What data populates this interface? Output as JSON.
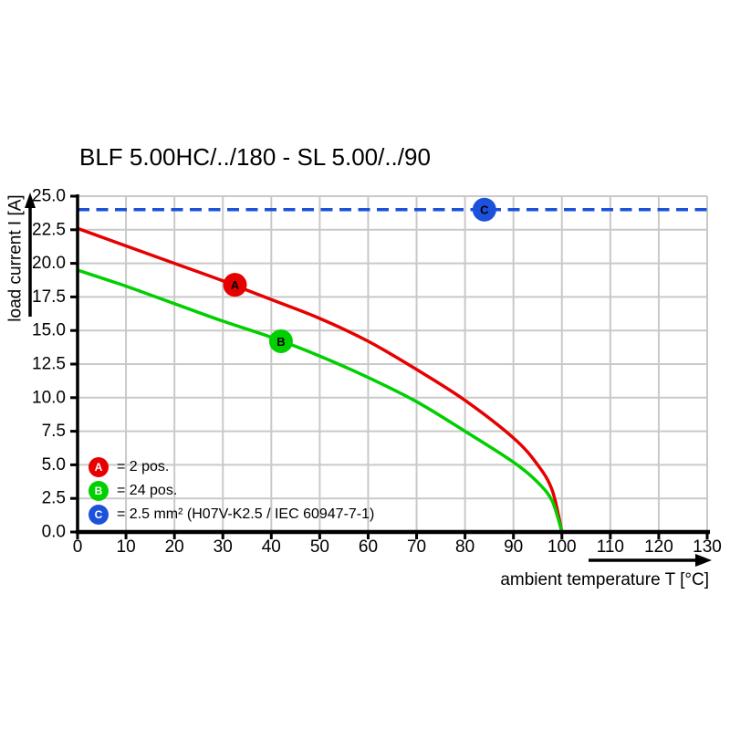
{
  "chart_data": {
    "type": "line",
    "title": "BLF 5.00HC/../180 - SL 5.00/../90",
    "xlabel": "ambient temperature T [°C]",
    "ylabel": "load current I [A]",
    "xlim": [
      0,
      130
    ],
    "ylim": [
      0,
      25
    ],
    "x_ticks": [
      "0",
      "10",
      "20",
      "30",
      "40",
      "50",
      "60",
      "70",
      "80",
      "90",
      "100",
      "110",
      "120",
      "130"
    ],
    "y_ticks": [
      "0.0",
      "2.5",
      "5.0",
      "7.5",
      "10.0",
      "12.5",
      "15.0",
      "17.5",
      "20.0",
      "22.5",
      "25.0"
    ],
    "grid": true,
    "grid_color": "#c9c9c9",
    "axis_color": "#000000",
    "background": "#ffffff",
    "series": [
      {
        "name": "A",
        "label": "2 pos.",
        "color": "#e60000",
        "points": [
          [
            0,
            22.6
          ],
          [
            10,
            21.3
          ],
          [
            20,
            20.0
          ],
          [
            30,
            18.7
          ],
          [
            40,
            17.3
          ],
          [
            50,
            15.9
          ],
          [
            60,
            14.2
          ],
          [
            70,
            12.1
          ],
          [
            80,
            9.8
          ],
          [
            90,
            7.0
          ],
          [
            95,
            5.0
          ],
          [
            98,
            3.1
          ],
          [
            100,
            0
          ]
        ]
      },
      {
        "name": "B",
        "label": "24 pos.",
        "color": "#00cf00",
        "points": [
          [
            0,
            19.5
          ],
          [
            10,
            18.3
          ],
          [
            20,
            17.0
          ],
          [
            30,
            15.7
          ],
          [
            40,
            14.5
          ],
          [
            50,
            13.1
          ],
          [
            60,
            11.5
          ],
          [
            70,
            9.7
          ],
          [
            80,
            7.5
          ],
          [
            90,
            5.2
          ],
          [
            95,
            3.7
          ],
          [
            98,
            2.3
          ],
          [
            100,
            0
          ]
        ]
      }
    ],
    "reference_line": {
      "name": "C",
      "label": "2.5 mm² (H07V-K2.5 / IEC 60947-7-1)",
      "color": "#1c52db",
      "value": 24,
      "style": "dashed"
    },
    "markers": [
      {
        "key": "A",
        "x": 32.5,
        "y": 18.4,
        "color": "#e60000"
      },
      {
        "key": "B",
        "x": 42,
        "y": 14.2,
        "color": "#00cf00"
      },
      {
        "key": "C",
        "x": 84,
        "y": 24,
        "color": "#1c52db"
      }
    ],
    "legend": [
      {
        "key": "A",
        "label": "= 2 pos.",
        "color": "#e60000"
      },
      {
        "key": "B",
        "label": "= 24 pos.",
        "color": "#00cf00"
      },
      {
        "key": "C",
        "label": "= 2.5 mm² (H07V-K2.5 / IEC 60947-7-1)",
        "color": "#1c52db"
      }
    ]
  }
}
